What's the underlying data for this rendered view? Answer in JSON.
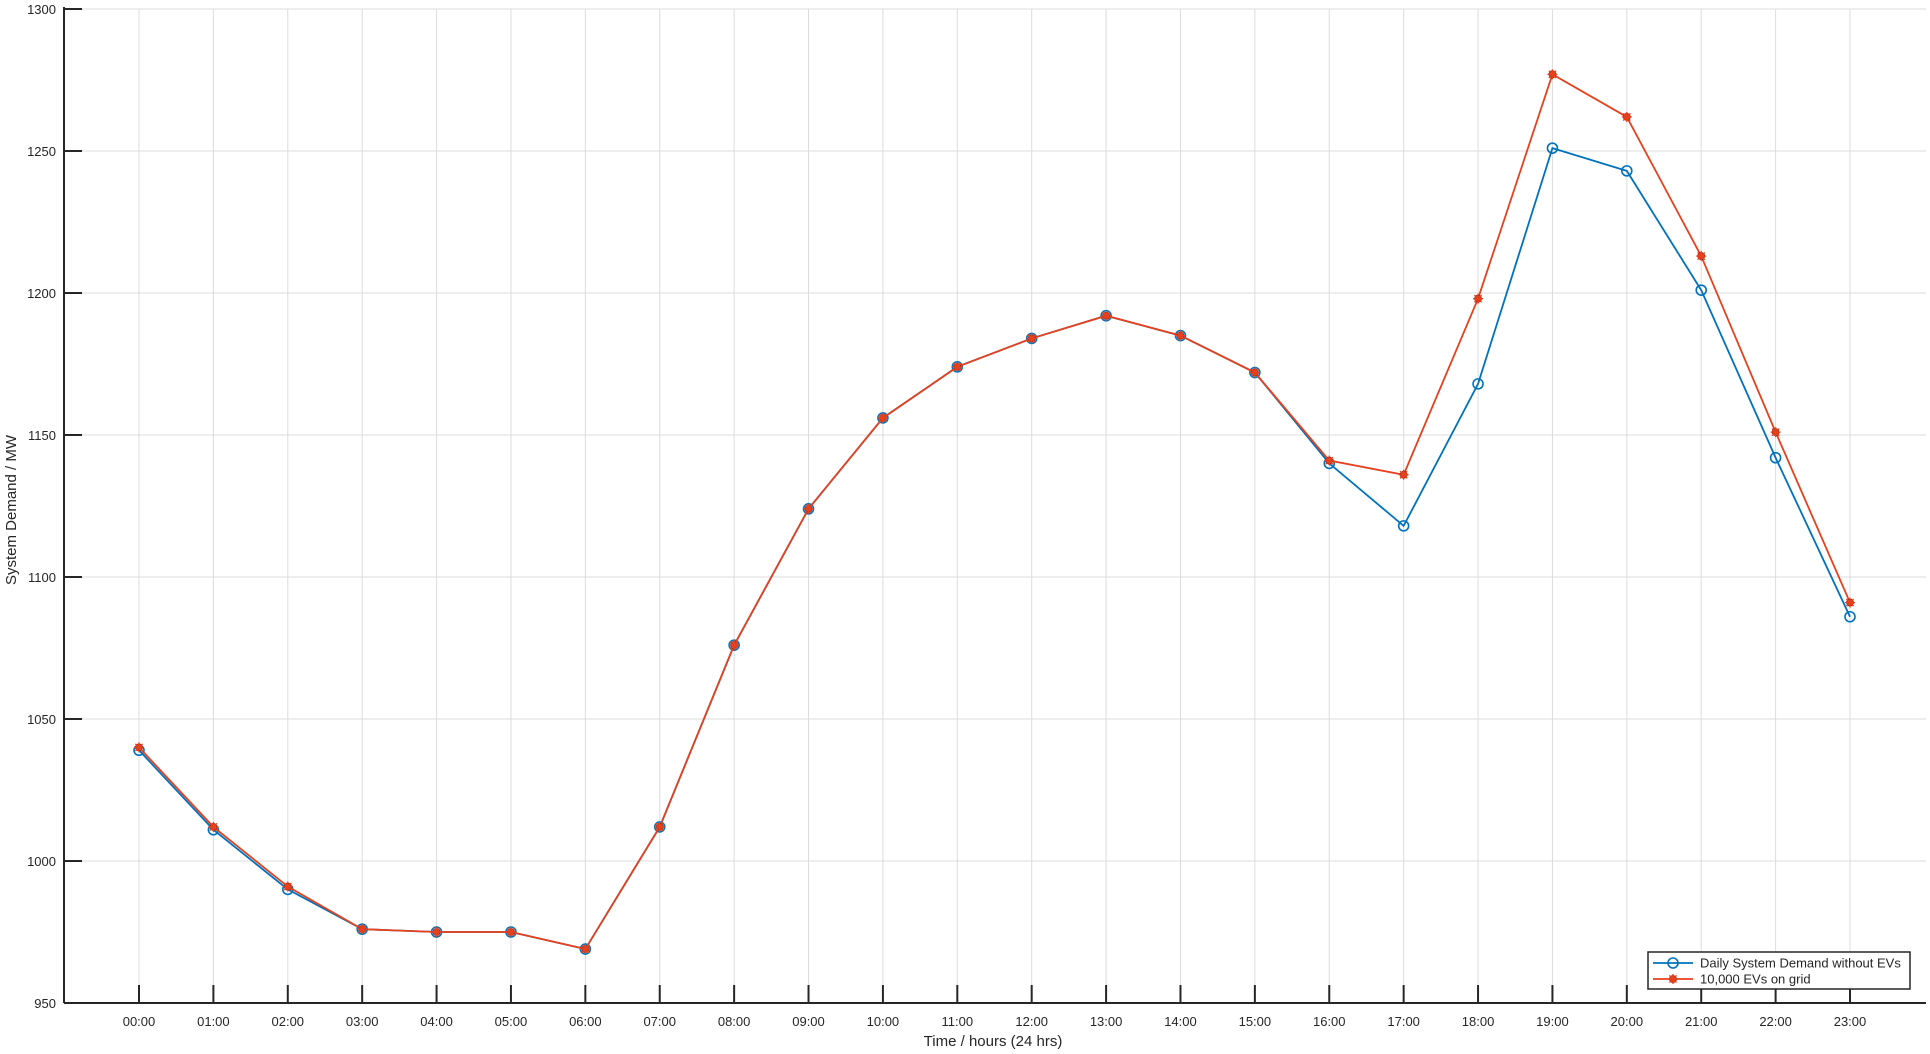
{
  "chart_data": {
    "type": "line",
    "title": "",
    "xlabel": "Time / hours (24 hrs)",
    "ylabel": "System Demand / MW",
    "ylim": [
      950,
      1300
    ],
    "yticks": [
      "950",
      "1000",
      "1050",
      "1100",
      "1150",
      "1200",
      "1250",
      "1300"
    ],
    "categories": [
      "00:00",
      "01:00",
      "02:00",
      "03:00",
      "04:00",
      "05:00",
      "06:00",
      "07:00",
      "08:00",
      "09:00",
      "10:00",
      "11:00",
      "12:00",
      "13:00",
      "14:00",
      "15:00",
      "16:00",
      "17:00",
      "18:00",
      "19:00",
      "20:00",
      "21:00",
      "22:00",
      "23:00"
    ],
    "grid": true,
    "legend_position": "bottom-right",
    "series": [
      {
        "name": "Daily System Demand without EVs",
        "color": "#0072BD",
        "marker": "circle",
        "values": [
          1039,
          1011,
          990,
          976,
          975,
          975,
          969,
          1012,
          1076,
          1124,
          1156,
          1174,
          1184,
          1192,
          1185,
          1172,
          1140,
          1118,
          1168,
          1251,
          1243,
          1201,
          1142,
          1086
        ]
      },
      {
        "name": "10,000 EVs on grid",
        "color": "#E8401C",
        "marker": "asterisk",
        "values": [
          1040,
          1012,
          991,
          976,
          975,
          975,
          969,
          1012,
          1076,
          1124,
          1156,
          1174,
          1184,
          1192,
          1185,
          1172,
          1141,
          1136,
          1198,
          1277,
          1262,
          1213,
          1151,
          1091
        ]
      }
    ]
  }
}
